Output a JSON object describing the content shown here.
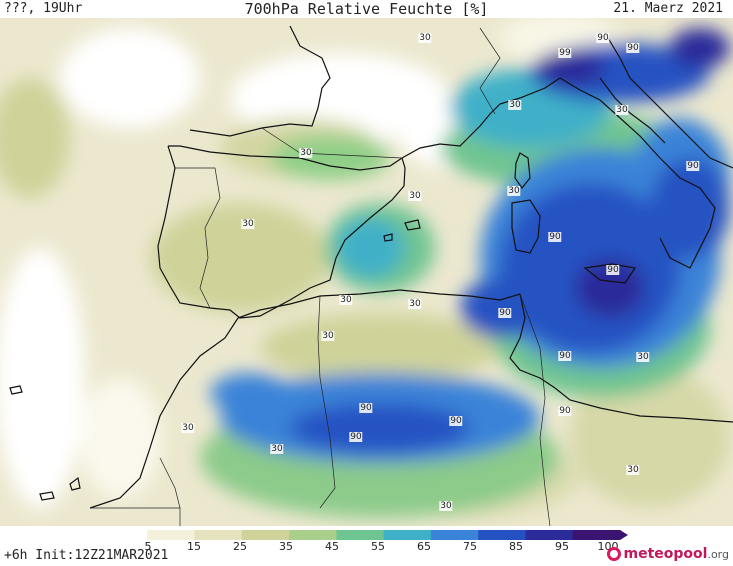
{
  "header": {
    "location": "???, 19Uhr",
    "title": "700hPa Relative Feuchte [%]",
    "date": "21. Maerz 2021"
  },
  "footer": {
    "run_info": "+6h Init:12Z21MAR2021",
    "brand": "meteopool",
    "brand_suffix": ".org"
  },
  "colorbar": {
    "ticks": [
      "5",
      "15",
      "25",
      "35",
      "45",
      "55",
      "65",
      "75",
      "85",
      "95",
      "100"
    ],
    "colors": [
      "#ffffff",
      "#f3f0dc",
      "#e4e3bd",
      "#cfd39a",
      "#a9d08a",
      "#6fc591",
      "#3fb0c8",
      "#3a83d8",
      "#2552c2",
      "#2b2b9a",
      "#3a1470"
    ]
  },
  "map": {
    "contour_labels": [
      "30",
      "90",
      "90",
      "99",
      "30",
      "30",
      "30",
      "30",
      "30",
      "90",
      "90",
      "90",
      "30",
      "30",
      "30",
      "90",
      "90",
      "30",
      "90",
      "90",
      "90",
      "30",
      "30",
      "30",
      "30",
      "30"
    ]
  }
}
